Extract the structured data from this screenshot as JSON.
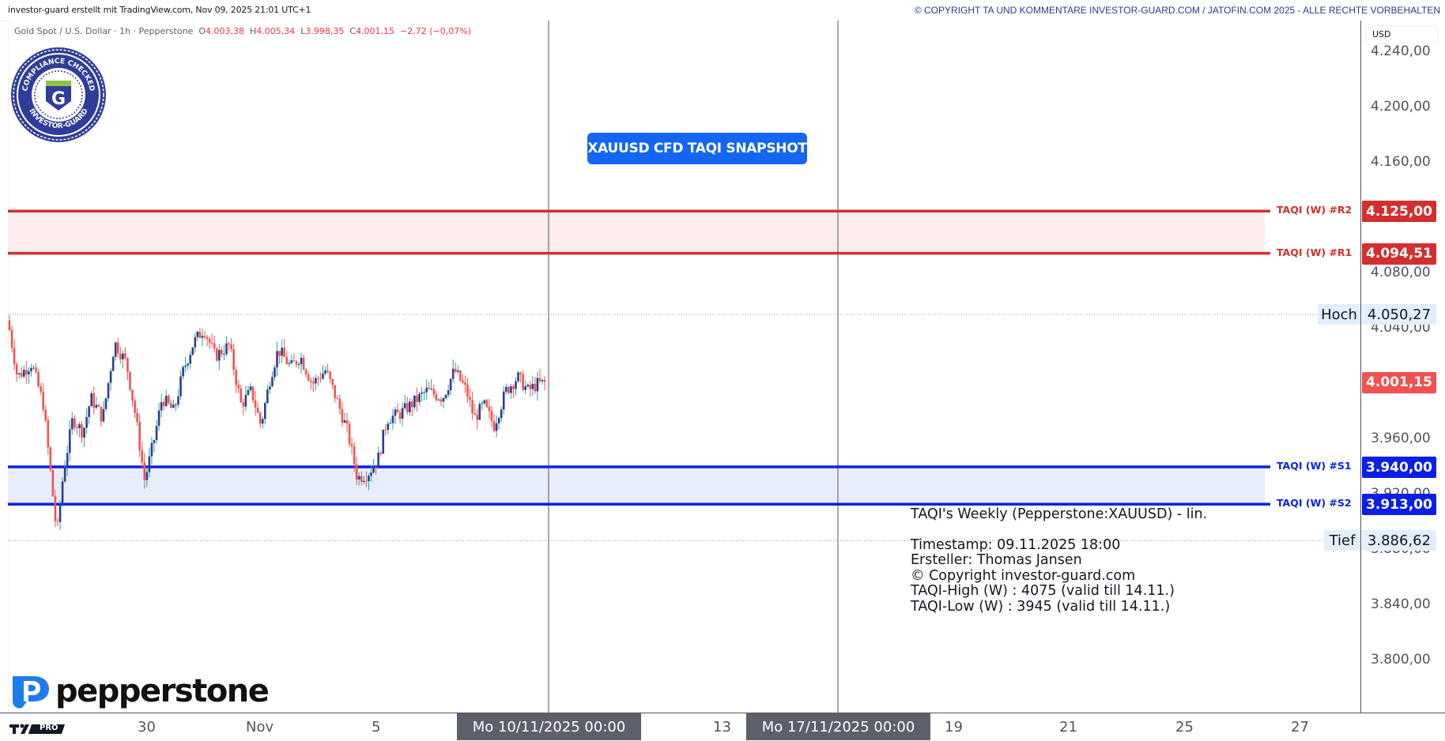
{
  "header": {
    "credit": "investor-guard erstellt mit TradingView.com, Nov 09, 2025 21:01 UTC+1",
    "copyright": "© COPYRIGHT TA UND KOMMENTARE INVESTOR-GUARD.COM / JATOFIN.COM 2025 - ALLE RECHTE VORBEHALTEN"
  },
  "legend": {
    "symbol": "Gold Spot / U.S. Dollar · 1h · Pepperstone",
    "o_label": "O",
    "o": "4.003,38",
    "h_label": "H",
    "h": "4.005,34",
    "l_label": "L",
    "l": "3.998,35",
    "c_label": "C",
    "c": "4.001,15",
    "change": "−2,72 (−0,07%)"
  },
  "badge": {
    "top_text": "COMPLIANCE CHECKED",
    "bottom_text": "INVESTOR-GUARD",
    "letter": "G"
  },
  "snapshot_button": "XAUUSD CFD TAQI SNAPSHOT",
  "currency": "USD",
  "levels": [
    {
      "name": "TAQI (W) #R2",
      "value": "4.125,00",
      "price": 4125.0,
      "color": "#d32f2f"
    },
    {
      "name": "TAQI (W) #R1",
      "value": "4.094,51",
      "price": 4094.51,
      "color": "#d32f2f"
    },
    {
      "name": "TAQI (W) #S1",
      "value": "3.940,00",
      "price": 3940.0,
      "color": "#0b1fe8"
    },
    {
      "name": "TAQI (W) #S2",
      "value": "3.913,00",
      "price": 3913.0,
      "color": "#0b1fe8"
    }
  ],
  "high_low": {
    "high_label": "Hoch",
    "high_value": "4.050,27",
    "high_price": 4050.27,
    "low_label": "Tief",
    "low_value": "3.886,62",
    "low_price": 3886.62
  },
  "last_price": {
    "value": "4.001,15",
    "price": 4001.15,
    "color": "#ef5350"
  },
  "price_ticks": [
    "4.240,00",
    "4.200,00",
    "4.160,00",
    "4.080,00",
    "4.040,00",
    "3.960,00",
    "3.920,00",
    "3.880,00",
    "3.840,00",
    "3.800,00"
  ],
  "info_box": {
    "title": "TAQI's Weekly (Pepperstone:XAUUSD) - lin.",
    "timestamp": "Timestamp: 09.11.2025 18:00",
    "author": "Ersteller: Thomas Jansen",
    "copyright": "© Copyright investor-guard.com",
    "high": "TAQI-High (W) : 4075 (valid till 14.11.)",
    "low": "TAQI-Low (W) : 3945 (valid till 14.11.)"
  },
  "time_axis": {
    "labels": [
      "30",
      "Nov",
      "5",
      "13",
      "19",
      "21",
      "25",
      "27"
    ],
    "selected": [
      "Mo 10/11/2025   00:00",
      "Mo 17/11/2025   00:00"
    ]
  },
  "branding": {
    "broker": "pepperstone",
    "tv": "PRO"
  },
  "colors": {
    "bull": "#2e3c8f",
    "bear": "#ef5350",
    "wick_bull": "#26a69a",
    "accent": "#1466f2"
  },
  "chart_data": {
    "type": "candlestick",
    "title": "Gold Spot / U.S. Dollar · 1h · Pepperstone",
    "xlabel": "",
    "ylabel": "USD",
    "ylim": [
      3780,
      4250
    ],
    "x_ticks": [
      "30",
      "Nov",
      "5",
      "Mo 10/11/2025 00:00",
      "13",
      "Mo 17/11/2025 00:00",
      "19",
      "21",
      "25",
      "27"
    ],
    "last": {
      "open": 4003.38,
      "high": 4005.34,
      "low": 3998.35,
      "close": 4001.15,
      "change": -2.72,
      "change_pct": -0.07
    },
    "session_high": 4050.27,
    "session_low": 3886.62,
    "horizontal_levels": {
      "R2": 4125.0,
      "R1": 4094.51,
      "S1": 3940.0,
      "S2": 3913.0
    },
    "vertical_markers": [
      "Mo 10/11/2025 00:00",
      "Mo 17/11/2025 00:00"
    ],
    "close_path_anchors": [
      {
        "x": 10,
        "p": 4046
      },
      {
        "x": 22,
        "p": 4005
      },
      {
        "x": 40,
        "p": 4015
      },
      {
        "x": 55,
        "p": 3985
      },
      {
        "x": 65,
        "p": 3930
      },
      {
        "x": 72,
        "p": 3890
      },
      {
        "x": 80,
        "p": 3935
      },
      {
        "x": 92,
        "p": 3975
      },
      {
        "x": 105,
        "p": 3965
      },
      {
        "x": 115,
        "p": 3990
      },
      {
        "x": 130,
        "p": 3975
      },
      {
        "x": 145,
        "p": 4030
      },
      {
        "x": 160,
        "p": 4015
      },
      {
        "x": 172,
        "p": 3975
      },
      {
        "x": 183,
        "p": 3930
      },
      {
        "x": 195,
        "p": 3960
      },
      {
        "x": 205,
        "p": 3990
      },
      {
        "x": 220,
        "p": 3980
      },
      {
        "x": 232,
        "p": 4010
      },
      {
        "x": 245,
        "p": 4030
      },
      {
        "x": 258,
        "p": 4040
      },
      {
        "x": 272,
        "p": 4020
      },
      {
        "x": 290,
        "p": 4028
      },
      {
        "x": 305,
        "p": 3985
      },
      {
        "x": 318,
        "p": 3995
      },
      {
        "x": 330,
        "p": 3970
      },
      {
        "x": 342,
        "p": 4005
      },
      {
        "x": 352,
        "p": 4025
      },
      {
        "x": 368,
        "p": 4012
      },
      {
        "x": 380,
        "p": 4020
      },
      {
        "x": 395,
        "p": 4000
      },
      {
        "x": 412,
        "p": 4010
      },
      {
        "x": 425,
        "p": 3990
      },
      {
        "x": 440,
        "p": 3965
      },
      {
        "x": 452,
        "p": 3932
      },
      {
        "x": 465,
        "p": 3935
      },
      {
        "x": 478,
        "p": 3945
      },
      {
        "x": 490,
        "p": 3975
      },
      {
        "x": 505,
        "p": 3978
      },
      {
        "x": 520,
        "p": 3985
      },
      {
        "x": 540,
        "p": 3995
      },
      {
        "x": 560,
        "p": 3990
      },
      {
        "x": 575,
        "p": 4010
      },
      {
        "x": 590,
        "p": 3995
      },
      {
        "x": 600,
        "p": 3975
      },
      {
        "x": 612,
        "p": 3985
      },
      {
        "x": 625,
        "p": 3970
      },
      {
        "x": 640,
        "p": 3995
      },
      {
        "x": 655,
        "p": 4005
      },
      {
        "x": 668,
        "p": 3995
      },
      {
        "x": 680,
        "p": 4000
      },
      {
        "x": 693,
        "p": 4001
      }
    ]
  }
}
